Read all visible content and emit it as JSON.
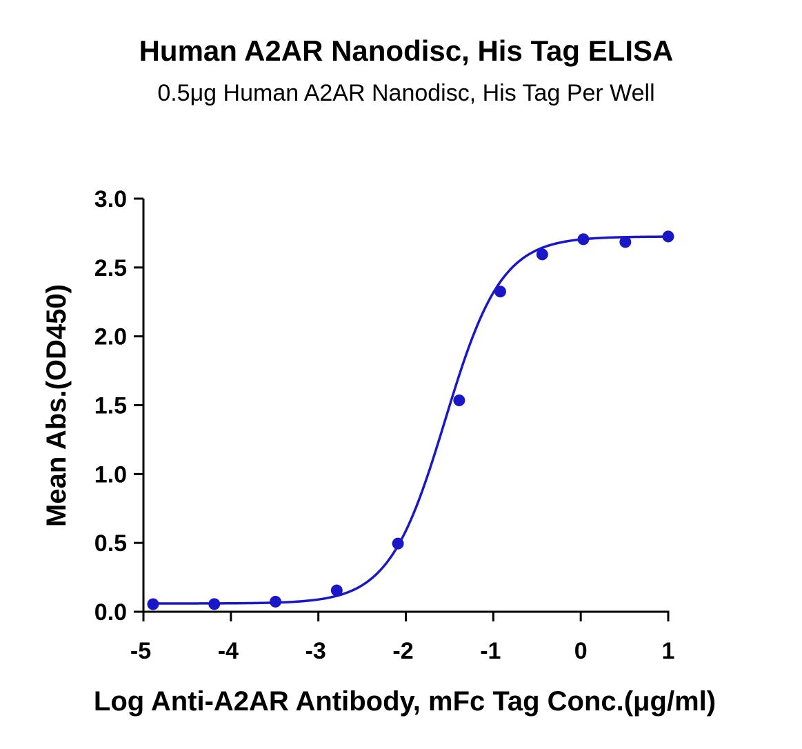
{
  "chart_data": {
    "type": "line",
    "title": "Human A2AR Nanodisc, His Tag ELISA",
    "subtitle": "0.5μg Human A2AR Nanodisc, His Tag Per Well",
    "xlabel": "Log Anti-A2AR Antibody, mFc Tag Conc.(μg/ml)",
    "ylabel": "Mean Abs.(OD450)",
    "xlim": [
      -5,
      1
    ],
    "ylim": [
      0,
      3.0
    ],
    "x_ticks": [
      "-5",
      "-4",
      "-3",
      "-2",
      "-1",
      "0",
      "1"
    ],
    "y_ticks": [
      "0.0",
      "0.5",
      "1.0",
      "1.5",
      "2.0",
      "2.5",
      "3.0"
    ],
    "grid": false,
    "color": "#1a17c8",
    "series": [
      {
        "points": {
          "x": [
            -4.89,
            -4.19,
            -3.49,
            -2.79,
            -2.09,
            -1.39,
            -0.92,
            -0.44,
            0.03,
            0.51,
            1.0
          ],
          "y": [
            0.055,
            0.056,
            0.073,
            0.155,
            0.495,
            1.535,
            2.325,
            2.595,
            2.705,
            2.685,
            2.725
          ]
        },
        "fit": {
          "model": "4PL",
          "bottom": 0.06,
          "top": 2.725,
          "log_ec50": -1.55,
          "hill": 1.35
        }
      }
    ]
  }
}
